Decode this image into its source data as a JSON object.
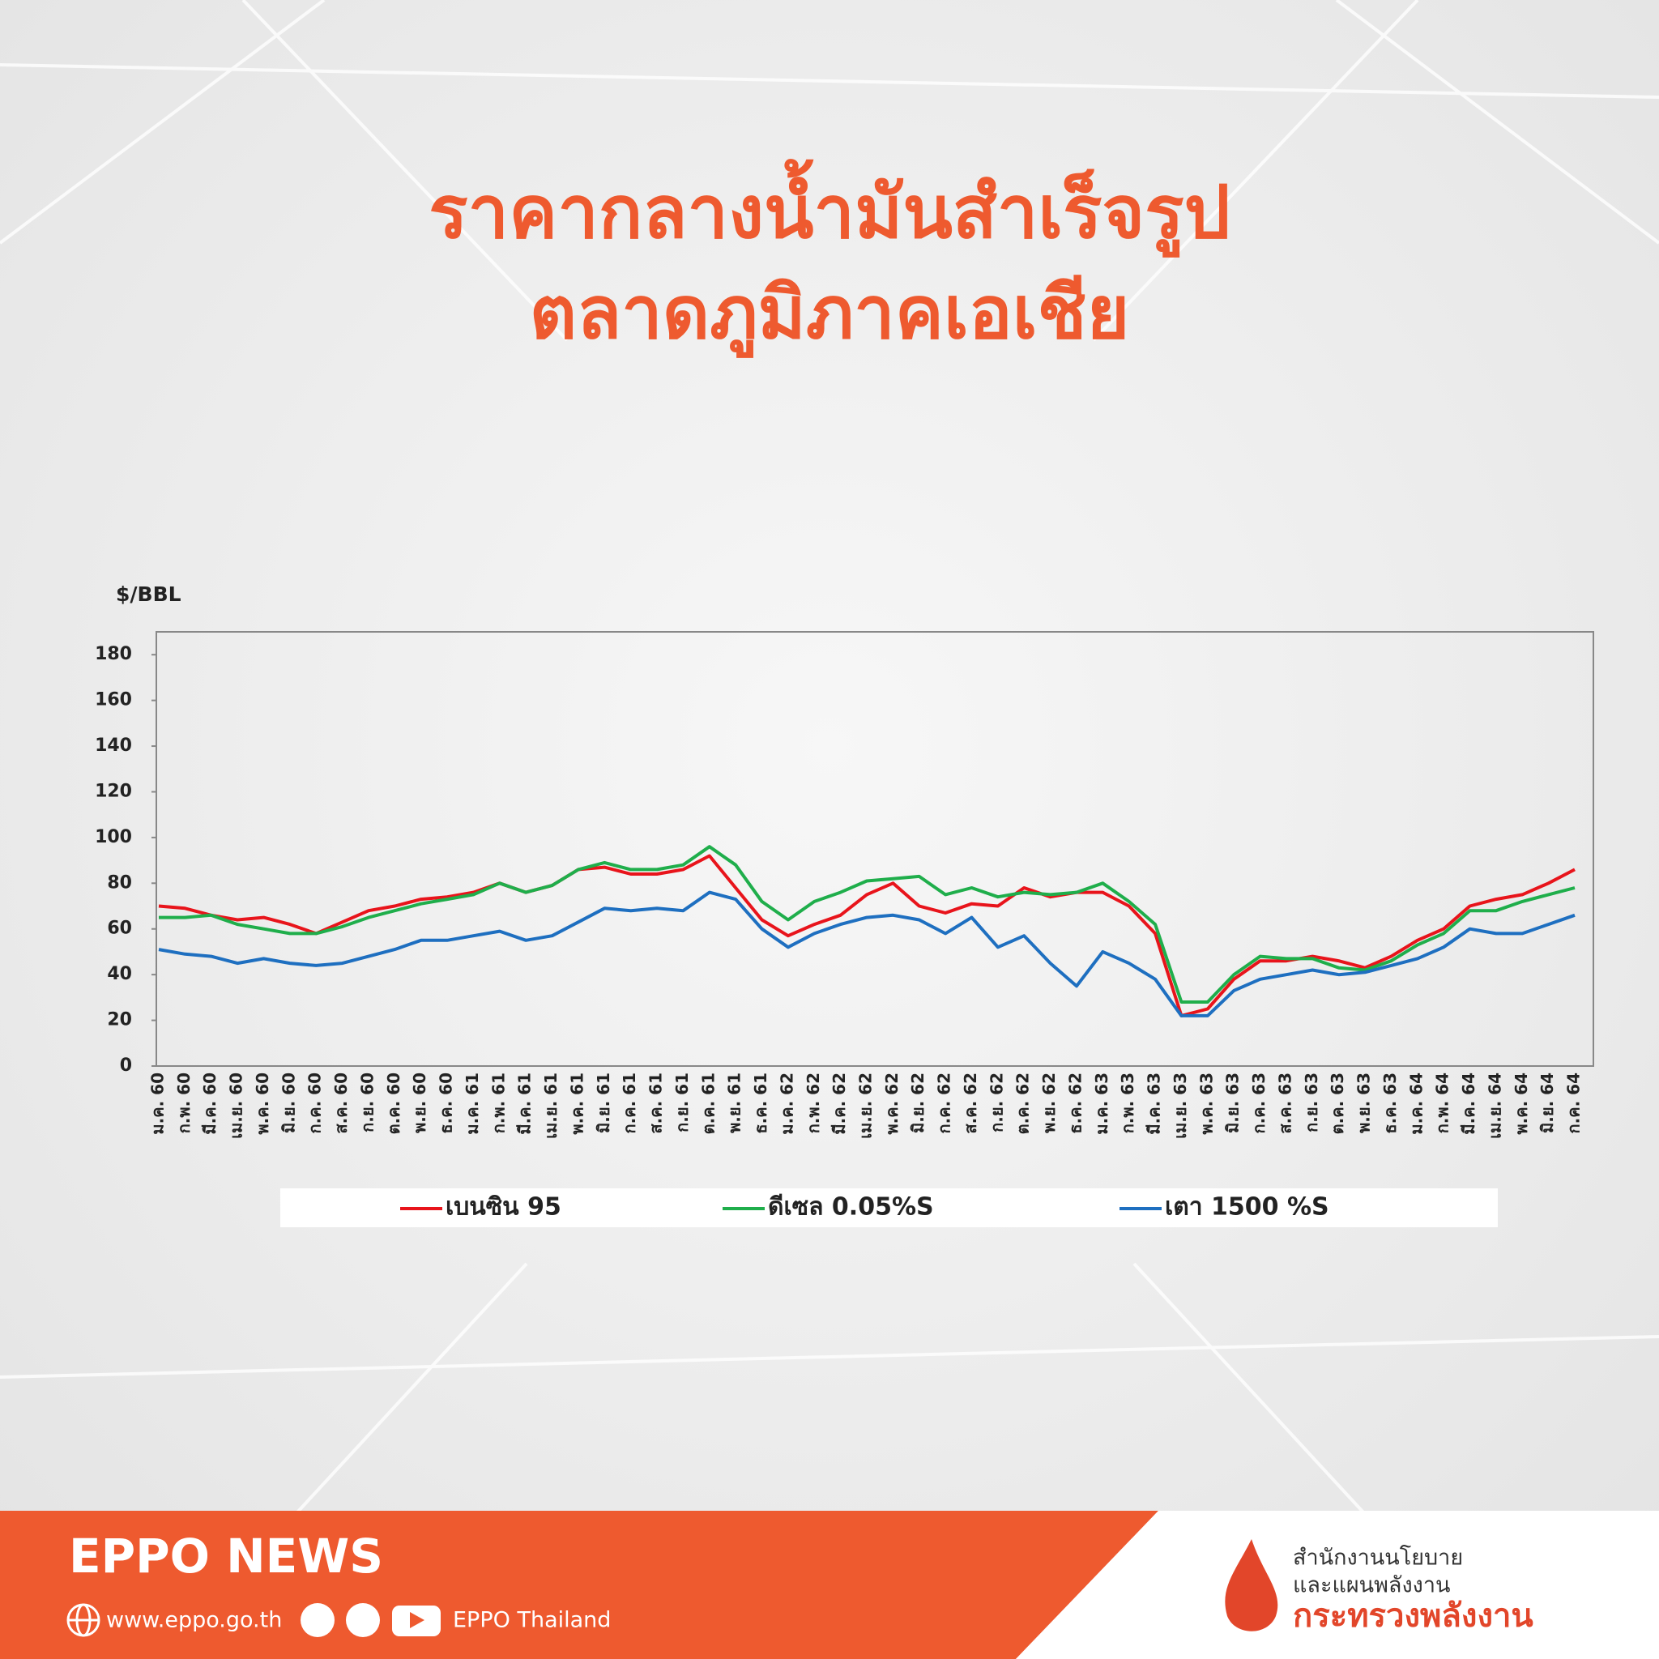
{
  "header": {
    "title_lines": [
      "ราคากลางน้ำมันสำเร็จรูป",
      "ตลาดภูมิภาคเอเชีย"
    ]
  },
  "chart_data": {
    "type": "line",
    "y_label": "$/BBL",
    "categories": [
      "ม.ค. 60",
      "ก.พ. 60",
      "มี.ค. 60",
      "เม.ย. 60",
      "พ.ค. 60",
      "มิ.ย. 60",
      "ก.ค. 60",
      "ส.ค. 60",
      "ก.ย. 60",
      "ต.ค. 60",
      "พ.ย. 60",
      "ธ.ค. 60",
      "ม.ค. 61",
      "ก.พ. 61",
      "มี.ค. 61",
      "เม.ย. 61",
      "พ.ค. 61",
      "มิ.ย. 61",
      "ก.ค. 61",
      "ส.ค. 61",
      "ก.ย. 61",
      "ต.ค. 61",
      "พ.ย. 61",
      "ธ.ค. 61",
      "ม.ค. 62",
      "ก.พ. 62",
      "มี.ค. 62",
      "เม.ย. 62",
      "พ.ค. 62",
      "มิ.ย. 62",
      "ก.ค. 62",
      "ส.ค. 62",
      "ก.ย. 62",
      "ต.ค. 62",
      "พ.ย. 62",
      "ธ.ค. 62",
      "ม.ค. 63",
      "ก.พ. 63",
      "มี.ค. 63",
      "เม.ย. 63",
      "พ.ค. 63",
      "มิ.ย. 63",
      "ก.ค. 63",
      "ส.ค. 63",
      "ก.ย. 63",
      "ต.ค. 63",
      "พ.ย. 63",
      "ธ.ค. 63",
      "ม.ค. 64",
      "ก.พ. 64",
      "มี.ค. 64",
      "เม.ย. 64",
      "พ.ค. 64",
      "มิ.ย. 64",
      "ก.ค. 64"
    ],
    "series": [
      {
        "name": "เบนซิน 95",
        "color": "#e8141b",
        "values": [
          70,
          69,
          66,
          64,
          65,
          62,
          58,
          63,
          68,
          70,
          73,
          74,
          76,
          80,
          76,
          79,
          86,
          87,
          84,
          84,
          86,
          92,
          78,
          64,
          57,
          62,
          66,
          75,
          80,
          70,
          67,
          71,
          70,
          78,
          74,
          76,
          76,
          70,
          58,
          22,
          25,
          38,
          46,
          46,
          48,
          46,
          43,
          48,
          55,
          60,
          70,
          73,
          75,
          80,
          86
        ]
      },
      {
        "name": "ดีเซล 0.05%S",
        "color": "#1fae4b",
        "values": [
          65,
          65,
          66,
          62,
          60,
          58,
          58,
          61,
          65,
          68,
          71,
          73,
          75,
          80,
          76,
          79,
          86,
          89,
          86,
          86,
          88,
          96,
          88,
          72,
          64,
          72,
          76,
          81,
          82,
          83,
          75,
          78,
          74,
          76,
          75,
          76,
          80,
          72,
          62,
          28,
          28,
          40,
          48,
          47,
          47,
          43,
          42,
          46,
          53,
          58,
          68,
          68,
          72,
          75,
          78
        ]
      },
      {
        "name": "เตา 1500 %S",
        "color": "#1e6fc0",
        "values": [
          51,
          49,
          48,
          45,
          47,
          45,
          44,
          45,
          48,
          51,
          55,
          55,
          57,
          59,
          55,
          57,
          63,
          69,
          68,
          69,
          68,
          76,
          73,
          60,
          52,
          58,
          62,
          65,
          66,
          64,
          58,
          65,
          52,
          57,
          45,
          35,
          50,
          45,
          38,
          22,
          22,
          33,
          38,
          40,
          42,
          40,
          41,
          44,
          47,
          52,
          60,
          58,
          58,
          62,
          66
        ]
      }
    ],
    "ylim": [
      0,
      190
    ],
    "yticks": [
      0,
      20,
      40,
      60,
      80,
      100,
      120,
      140,
      160,
      180
    ],
    "grid": false,
    "legend": "bottom"
  },
  "footer": {
    "brand": "EPPO NEWS",
    "website": "www.eppo.go.th",
    "social": "EPPO Thailand",
    "org_lines": [
      "สำนักงานนโยบาย",
      "และแผนพลังงาน"
    ],
    "ministry": "กระทรวงพลังงาน"
  }
}
